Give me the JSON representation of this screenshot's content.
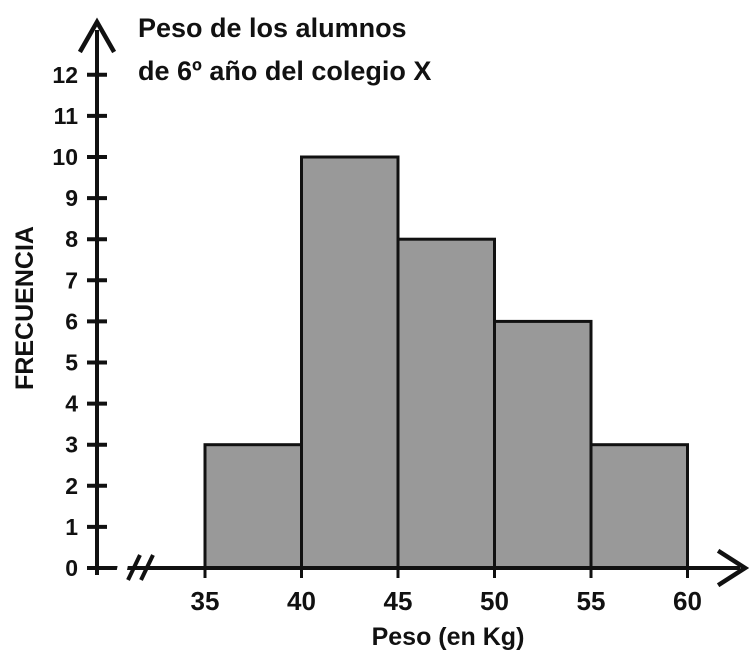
{
  "chart_data": {
    "type": "bar",
    "subtype": "histogram",
    "title_lines": [
      "Peso de los alumnos",
      "de 6º año del colegio X"
    ],
    "xlabel": "Peso (en Kg)",
    "ylabel": "FRECUENCIA",
    "x_tick_labels": [
      "35",
      "40",
      "45",
      "50",
      "55",
      "60"
    ],
    "y_tick_labels": [
      "0",
      "1",
      "2",
      "3",
      "4",
      "5",
      "6",
      "7",
      "8",
      "9",
      "10",
      "11",
      "12"
    ],
    "ylim": [
      0,
      12
    ],
    "x_axis_break": true,
    "bins": [
      {
        "from": 35,
        "to": 40,
        "value": 3
      },
      {
        "from": 40,
        "to": 45,
        "value": 10
      },
      {
        "from": 45,
        "to": 50,
        "value": 8
      },
      {
        "from": 50,
        "to": 55,
        "value": 6
      },
      {
        "from": 55,
        "to": 60,
        "value": 3
      }
    ],
    "grid": false,
    "colors": {
      "bar_fill": "#999999",
      "bar_stroke": "#111111",
      "axis": "#111111"
    }
  }
}
